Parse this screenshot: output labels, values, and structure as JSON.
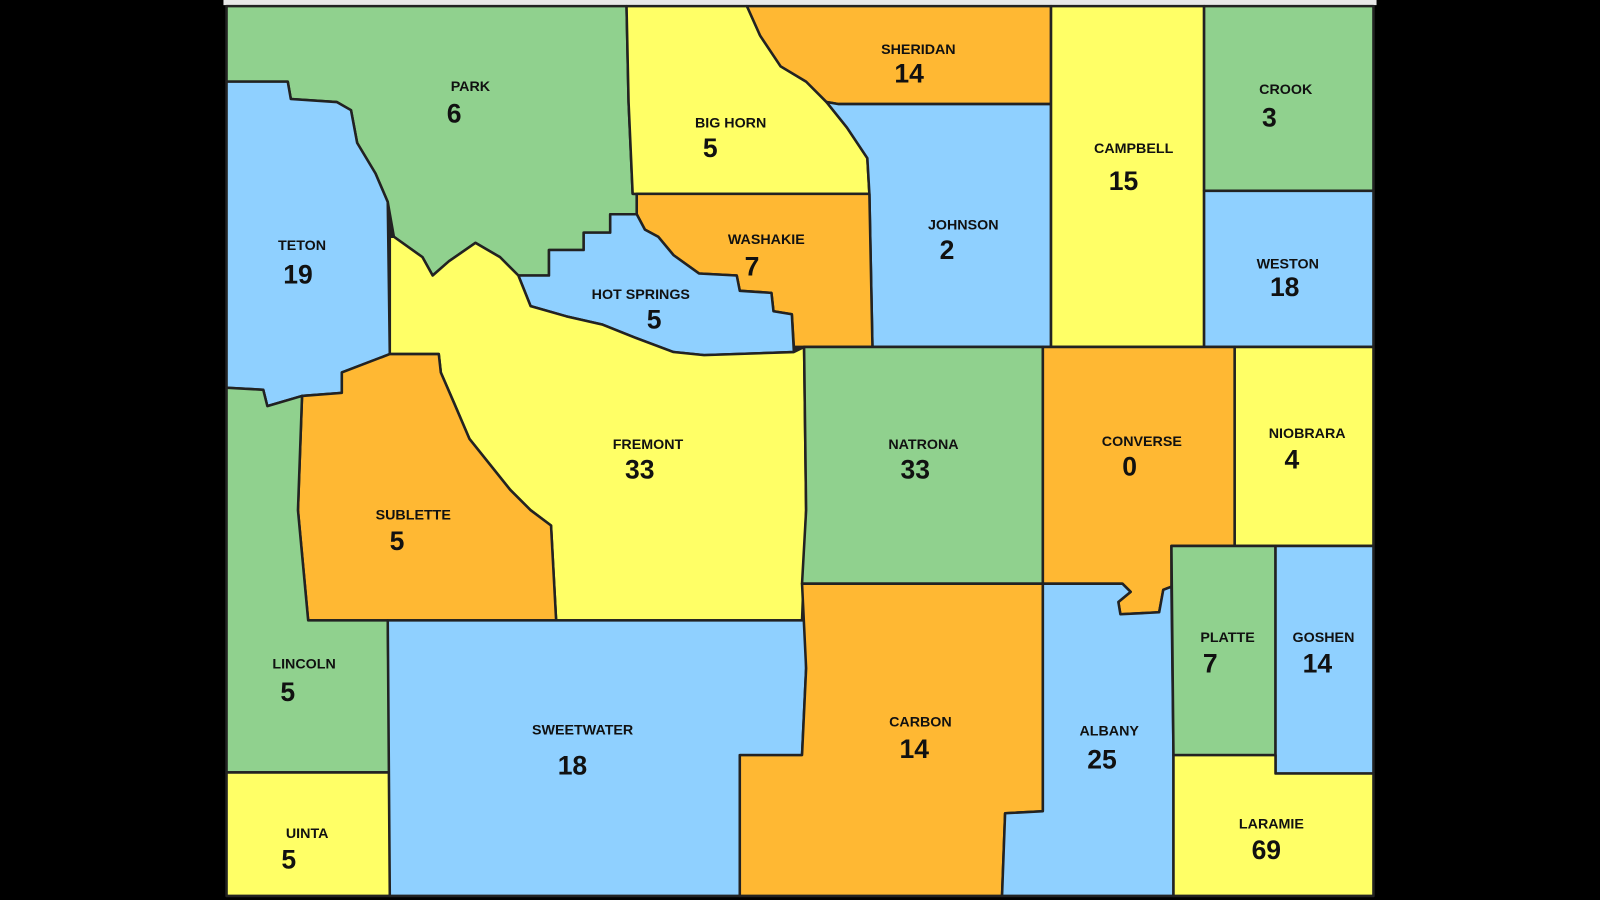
{
  "colors": {
    "green": "#90d18e",
    "blue": "#8fd0ff",
    "yellow": "#ffff66",
    "orange": "#ffb833",
    "background": "#000000",
    "border": "#222222"
  },
  "counties": {
    "park": {
      "name": "PARK",
      "count": "6",
      "color": "green"
    },
    "teton": {
      "name": "TETON",
      "count": "19",
      "color": "blue"
    },
    "big_horn": {
      "name": "BIG HORN",
      "count": "5",
      "color": "yellow"
    },
    "sheridan": {
      "name": "SHERIDAN",
      "count": "14",
      "color": "orange"
    },
    "johnson": {
      "name": "JOHNSON",
      "count": "2",
      "color": "blue"
    },
    "campbell": {
      "name": "CAMPBELL",
      "count": "15",
      "color": "yellow"
    },
    "crook": {
      "name": "CROOK",
      "count": "3",
      "color": "green"
    },
    "weston": {
      "name": "WESTON",
      "count": "18",
      "color": "blue"
    },
    "washakie": {
      "name": "WASHAKIE",
      "count": "7",
      "color": "orange"
    },
    "hot_springs": {
      "name": "HOT SPRINGS",
      "count": "5",
      "color": "blue"
    },
    "fremont": {
      "name": "FREMONT",
      "count": "33",
      "color": "yellow"
    },
    "natrona": {
      "name": "NATRONA",
      "count": "33",
      "color": "green"
    },
    "converse": {
      "name": "CONVERSE",
      "count": "0",
      "color": "orange"
    },
    "niobrara": {
      "name": "NIOBRARA",
      "count": "4",
      "color": "yellow"
    },
    "sublette": {
      "name": "SUBLETTE",
      "count": "5",
      "color": "orange"
    },
    "lincoln": {
      "name": "LINCOLN",
      "count": "5",
      "color": "green"
    },
    "uinta": {
      "name": "UINTA",
      "count": "5",
      "color": "yellow"
    },
    "sweetwater": {
      "name": "SWEETWATER",
      "count": "18",
      "color": "blue"
    },
    "carbon": {
      "name": "CARBON",
      "count": "14",
      "color": "orange"
    },
    "albany": {
      "name": "ALBANY",
      "count": "25",
      "color": "blue"
    },
    "platte": {
      "name": "PLATTE",
      "count": "7",
      "color": "green"
    },
    "goshen": {
      "name": "GOSHEN",
      "count": "14",
      "color": "blue"
    },
    "laramie": {
      "name": "LARAMIE",
      "count": "69",
      "color": "yellow"
    }
  }
}
